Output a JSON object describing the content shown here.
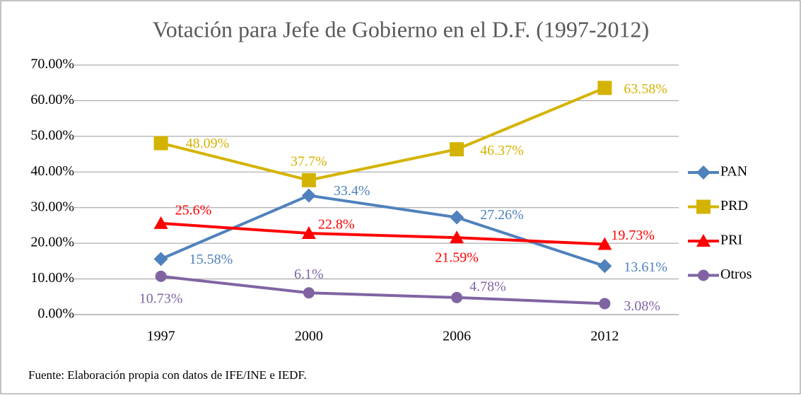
{
  "chart_data": {
    "type": "line",
    "title": "Votación para Jefe de Gobierno en el D.F. (1997-2012)",
    "note": "Fuente: Elaboración propia con datos de IFE/INE e IEDF.",
    "categories": [
      "1997",
      "2000",
      "2006",
      "2012"
    ],
    "series": [
      {
        "name": "PAN",
        "color": "#4f81bd",
        "marker": "diamond",
        "values": [
          15.58,
          33.4,
          27.26,
          13.61
        ],
        "value_labels": [
          "15.58%",
          "33.4%",
          "27.26%",
          "13.61%"
        ]
      },
      {
        "name": "PRD",
        "color": "#d4b300",
        "marker": "square",
        "values": [
          48.09,
          37.7,
          46.37,
          63.58
        ],
        "value_labels": [
          "48.09%",
          "37.7%",
          "46.37%",
          "63.58%"
        ]
      },
      {
        "name": "PRI",
        "color": "#ff0000",
        "marker": "triangle",
        "values": [
          25.6,
          22.8,
          21.59,
          19.73
        ],
        "value_labels": [
          "25.6%",
          "22.8%",
          "21.59%",
          "19.73%"
        ]
      },
      {
        "name": "Otros",
        "color": "#8064a2",
        "marker": "circle",
        "values": [
          10.73,
          6.1,
          4.78,
          3.08
        ],
        "value_labels": [
          "10.73%",
          "6.1%",
          "4.78%",
          "3.08%"
        ]
      }
    ],
    "ylim": [
      0,
      70
    ],
    "yticks": [
      {
        "value": 0,
        "label": "0.00%"
      },
      {
        "value": 10,
        "label": "10.00%"
      },
      {
        "value": 20,
        "label": "20.00%"
      },
      {
        "value": 30,
        "label": "30.00%"
      },
      {
        "value": 40,
        "label": "40.00%"
      },
      {
        "value": 50,
        "label": "50.00%"
      },
      {
        "value": 60,
        "label": "60.00%"
      },
      {
        "value": 70,
        "label": "70.00%"
      }
    ],
    "grid": true,
    "legend": "right"
  }
}
